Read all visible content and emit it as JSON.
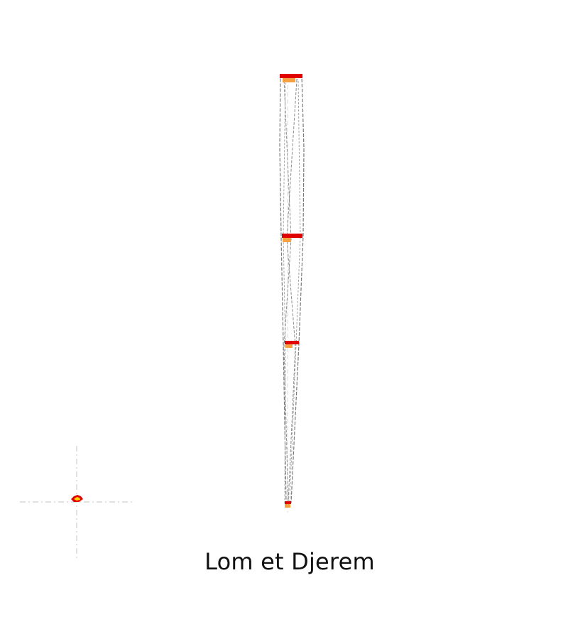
{
  "caption": "Lom et Djerem",
  "colors": {
    "background": "#ffffff",
    "outline": "#7a7a7a",
    "guide": "#cfcfcf",
    "highlight_red": "#e00000",
    "highlight_orange": "#f5a142",
    "marker_yellow": "#ffd400"
  },
  "icons": {
    "locator": "crosshair-locator-icon"
  }
}
